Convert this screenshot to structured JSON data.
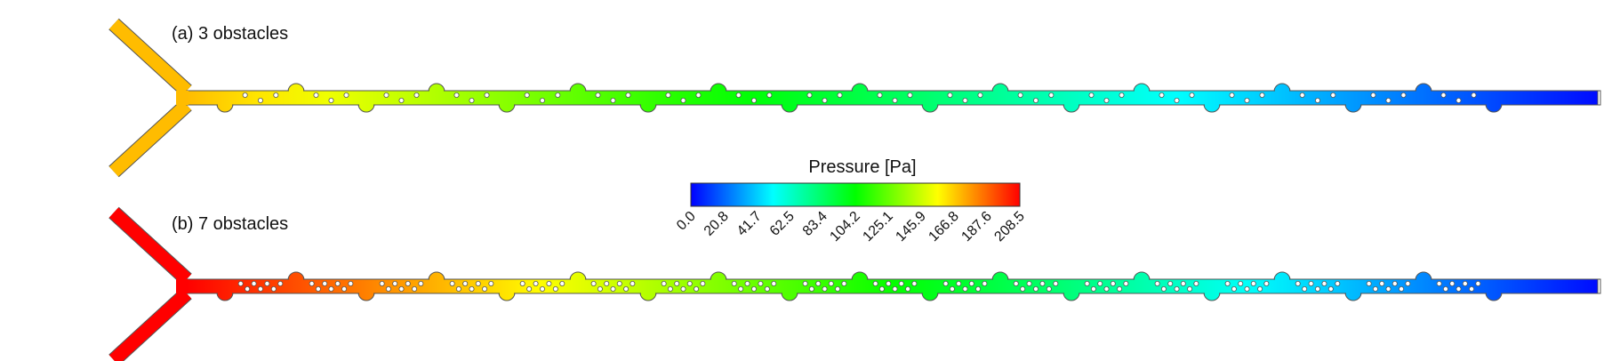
{
  "panels": [
    {
      "label": "(a) 3 obstacles",
      "obstacle_count": 3,
      "inlet_pressure_pa": 170.0
    },
    {
      "label": "(b) 7 obstacles",
      "obstacle_count": 7,
      "inlet_pressure_pa": 208.5
    }
  ],
  "colorbar": {
    "title": "Pressure [Pa]",
    "ticks": [
      "0.0",
      "20.8",
      "41.7",
      "62.5",
      "83.4",
      "104.2",
      "125.1",
      "145.9",
      "166.8",
      "187.6",
      "208.5"
    ],
    "range": [
      0.0,
      208.5
    ],
    "colors": [
      "#0000ff",
      "#00ffff",
      "#00ff00",
      "#ffff00",
      "#ff0000"
    ]
  },
  "colors": {
    "channel_outline": "#555555",
    "obstacle_fill": "#ffffff",
    "obstacle_stroke": "#555555"
  }
}
